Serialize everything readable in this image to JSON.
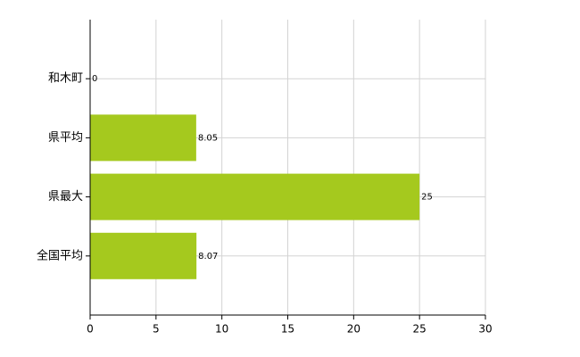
{
  "chart_data": {
    "type": "bar",
    "orientation": "horizontal",
    "categories": [
      "和木町",
      "県平均",
      "県最大",
      "全国平均"
    ],
    "values": [
      0,
      8.05,
      25,
      8.07
    ],
    "color": "#a5c91e",
    "xlim": [
      0,
      30
    ],
    "xticks": [
      0,
      5,
      10,
      15,
      20,
      25,
      30
    ],
    "grid": true,
    "data_labels": true
  }
}
